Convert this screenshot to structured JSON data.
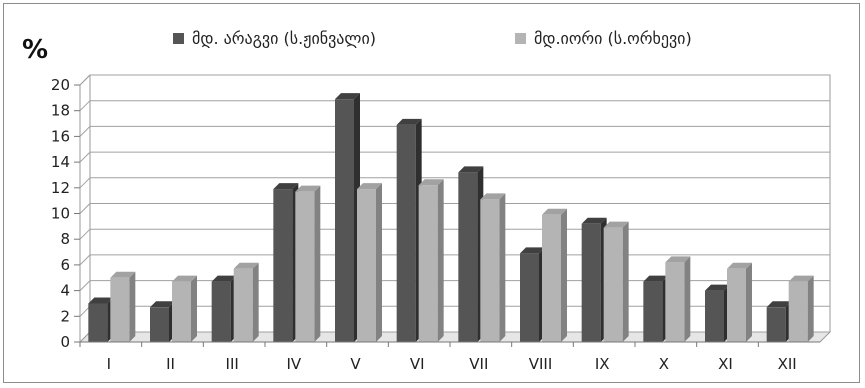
{
  "chart_data": {
    "type": "bar",
    "style": "3d-clustered-column",
    "unit_label": "%",
    "title": "",
    "xlabel": "",
    "ylabel": "%",
    "ylim": [
      0,
      20
    ],
    "yticks": [
      "0",
      "2",
      "4",
      "6",
      "8",
      "10",
      "12",
      "14",
      "16",
      "18",
      "20"
    ],
    "grid": true,
    "legend_position": "top",
    "categories": [
      "I",
      "II",
      "III",
      "IV",
      "V",
      "VI",
      "VII",
      "VIII",
      "IX",
      "X",
      "XI",
      "XII"
    ],
    "series": [
      {
        "name": "მდ. არაგვი (ს.ჟინვალი)",
        "color": "#555555",
        "values": [
          3.0,
          2.7,
          4.7,
          11.9,
          18.9,
          16.9,
          13.2,
          6.9,
          9.2,
          4.7,
          4.0,
          2.7
        ]
      },
      {
        "name": "მდ.იორი (ს.ორხევი)",
        "color": "#b4b4b4",
        "values": [
          5.0,
          4.7,
          5.7,
          11.7,
          11.9,
          12.2,
          11.1,
          9.9,
          8.9,
          6.2,
          5.7,
          4.7
        ]
      }
    ]
  }
}
